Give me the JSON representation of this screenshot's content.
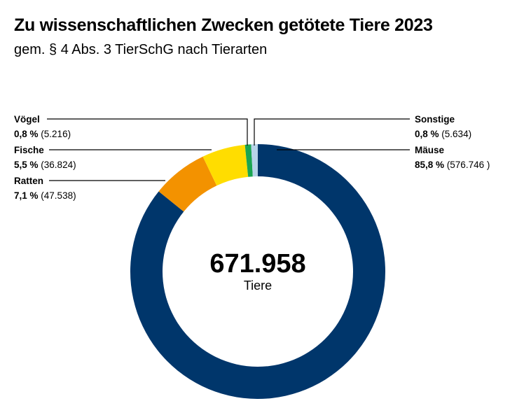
{
  "title": "Zu wissenschaftlichen Zwecken getötete Tiere 2023",
  "subtitle": "gem. § 4 Abs. 3 TierSchG nach Tierarten",
  "chart_data": {
    "type": "pie",
    "donut": true,
    "total_value": "671.958",
    "total_label": "Tiere",
    "slices": [
      {
        "name": "Mäuse",
        "percent_label": "85,8 %",
        "count_label": "(576.746 )",
        "value": 576746,
        "color": "#00366b"
      },
      {
        "name": "Ratten",
        "percent_label": "7,1 %",
        "count_label": "(47.538)",
        "value": 47538,
        "color": "#f39200"
      },
      {
        "name": "Fische",
        "percent_label": "5,5 %",
        "count_label": "(36.824)",
        "value": 36824,
        "color": "#ffdd00"
      },
      {
        "name": "Vögel",
        "percent_label": "0,8 %",
        "count_label": "(5.216)",
        "value": 5216,
        "color": "#1aa552"
      },
      {
        "name": "Sonstige",
        "percent_label": "0,8 %",
        "count_label": "(5.634)",
        "value": 5634,
        "color": "#b7d3e8"
      }
    ]
  }
}
